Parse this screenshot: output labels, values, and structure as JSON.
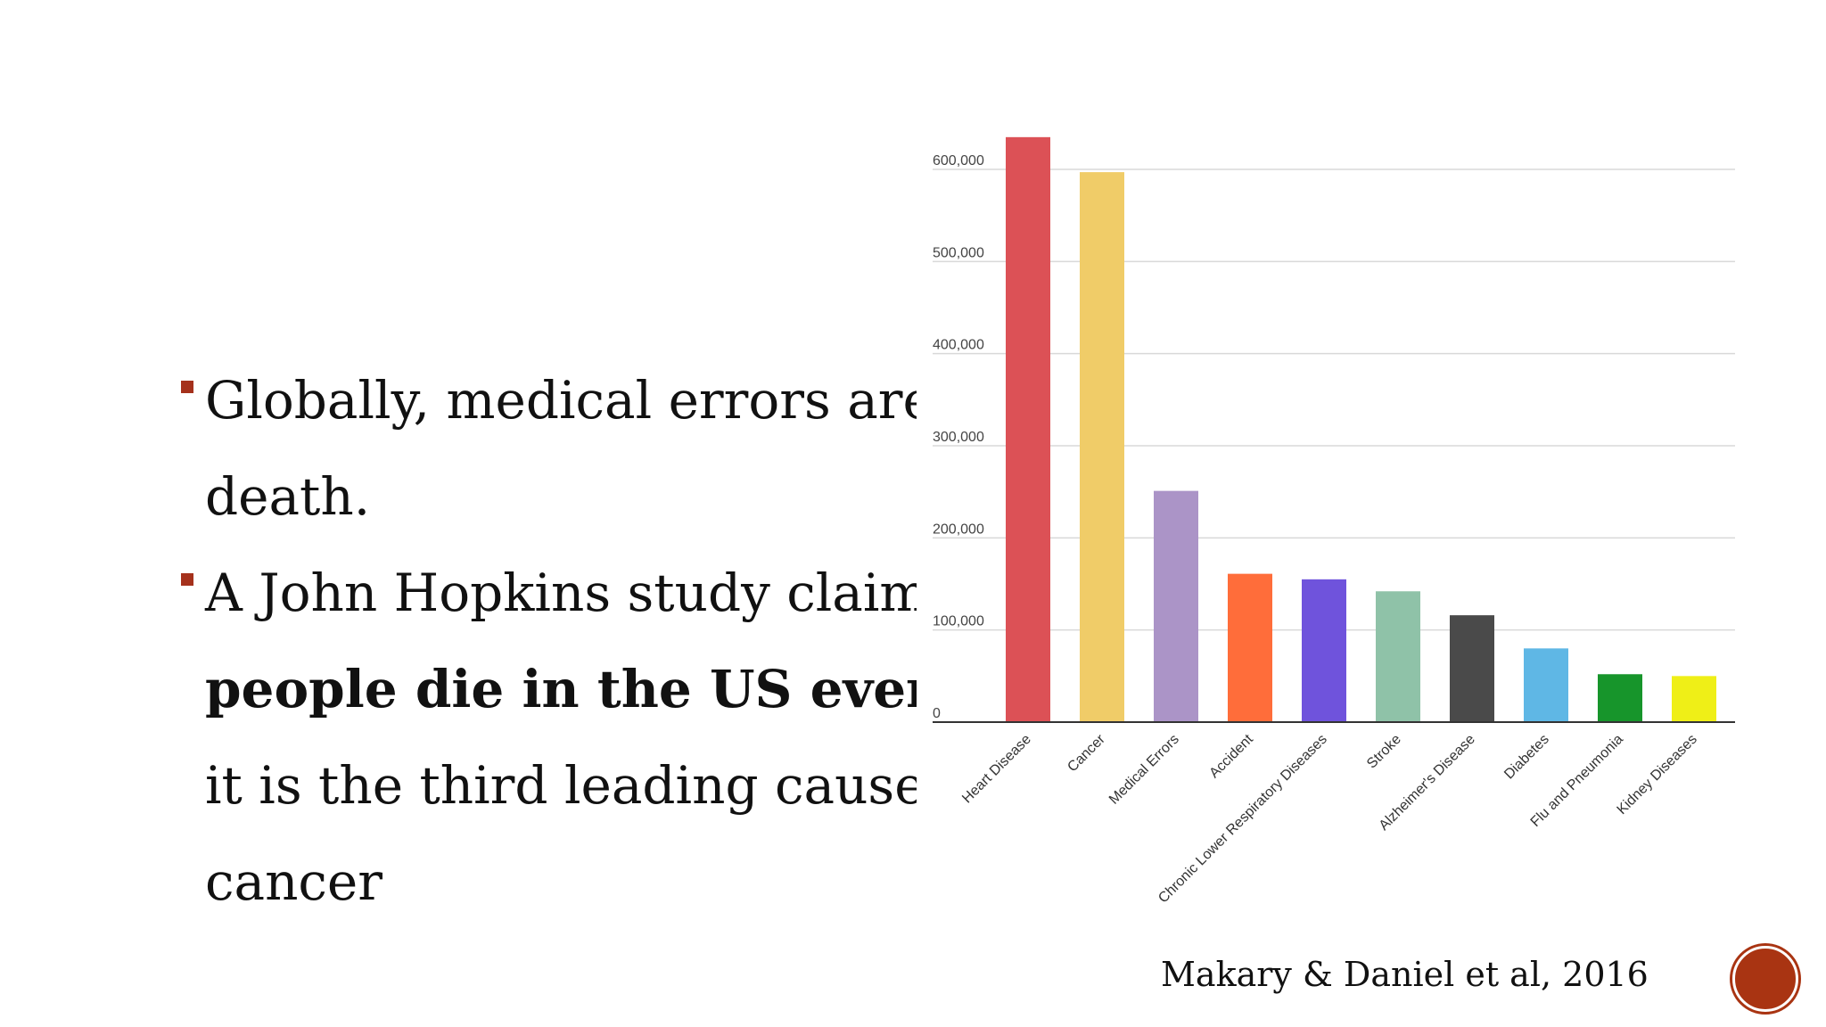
{
  "bullets": [
    {
      "lines": [
        {
          "text": "Globally, medical errors are o",
          "bold": false
        },
        {
          "text": "death.",
          "bold": false
        }
      ]
    },
    {
      "lines": [
        {
          "text": "A John Hopkins study claims t",
          "bold": false
        },
        {
          "text": "people die in the US every y",
          "bold": true
        },
        {
          "text": "it is the third leading cause of",
          "bold": false
        },
        {
          "text": "cancer",
          "bold": false
        }
      ]
    }
  ],
  "citation": "Makary & Daniel et al, 2016",
  "colors": {
    "accent": "#a5311c",
    "gridline": "#d9d9d9",
    "axis": "#333333"
  },
  "chart_data": {
    "type": "bar",
    "title": "",
    "xlabel": "",
    "ylabel": "",
    "ylim": [
      0,
      600000
    ],
    "yticks": [
      0,
      100000,
      200000,
      300000,
      400000,
      500000,
      600000
    ],
    "ytick_labels": [
      "0",
      "100,000",
      "200,000",
      "300,000",
      "400,000",
      "500,000",
      "600,000"
    ],
    "grid": true,
    "categories": [
      "Heart Disease",
      "Cancer",
      "Medical Errors",
      "Accident",
      "Chronic Lower Respiratory Diseases",
      "Stroke",
      "Alzheimer's Disease",
      "Diabetes",
      "Flu and Pneumonia",
      "Kidney Diseases"
    ],
    "values": [
      635000,
      597000,
      251000,
      161000,
      155000,
      142000,
      116000,
      80000,
      52000,
      50000
    ],
    "bar_colors": [
      "#dc5156",
      "#f0cc68",
      "#ab94c7",
      "#ff6d3a",
      "#6f53dc",
      "#8fc2a8",
      "#4a4a4a",
      "#5fb7e5",
      "#17952b",
      "#efef17"
    ]
  }
}
